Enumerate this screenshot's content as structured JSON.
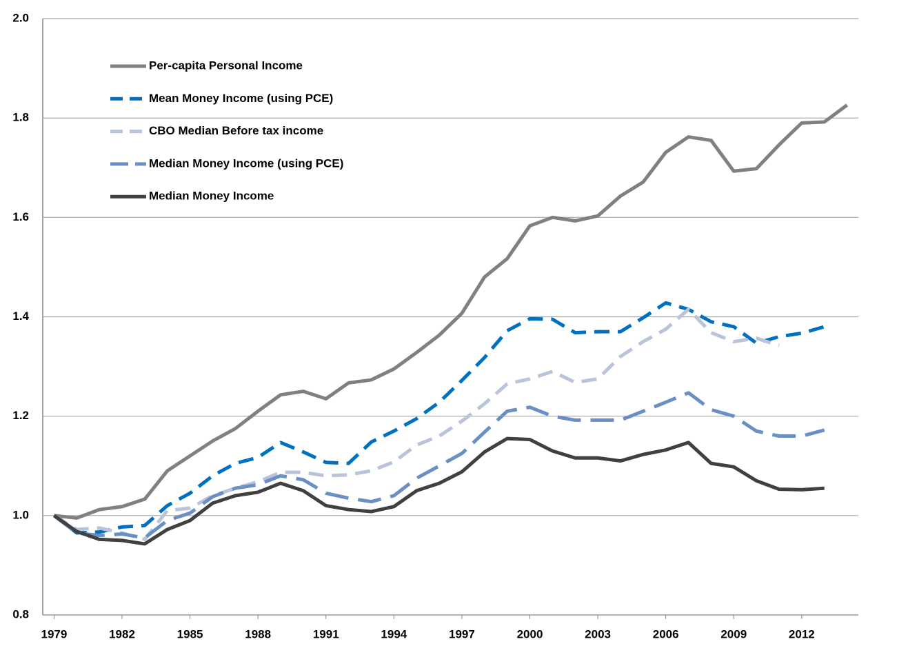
{
  "chart_data": {
    "type": "line",
    "x": [
      1979,
      1980,
      1981,
      1982,
      1983,
      1984,
      1985,
      1986,
      1987,
      1988,
      1989,
      1990,
      1991,
      1992,
      1993,
      1994,
      1995,
      1996,
      1997,
      1998,
      1999,
      2000,
      2001,
      2002,
      2003,
      2004,
      2005,
      2006,
      2007,
      2008,
      2009,
      2010,
      2011,
      2012,
      2013,
      2014
    ],
    "xlim": [
      1978.5,
      2014.5
    ],
    "xticks": [
      1979,
      1982,
      1985,
      1988,
      1991,
      1994,
      1997,
      2000,
      2003,
      2006,
      2009,
      2012
    ],
    "ylim": [
      0.8,
      2.0
    ],
    "yticks": [
      {
        "value": 0.8,
        "label": "0.8"
      },
      {
        "value": 1.0,
        "label": "1.0"
      },
      {
        "value": 1.2,
        "label": "1.2"
      },
      {
        "value": 1.4,
        "label": "1.4"
      },
      {
        "value": 1.6,
        "label": "1.6"
      },
      {
        "value": 1.8,
        "label": "1.8"
      },
      {
        "value": 2.0,
        "label": "2.0"
      }
    ],
    "grid": true,
    "legend": "upper left",
    "series": [
      {
        "name": "Per-capita Personal Income",
        "color": "#808080",
        "line_style": "solid",
        "values": [
          1.0,
          0.995,
          1.012,
          1.018,
          1.033,
          1.09,
          1.12,
          1.15,
          1.175,
          1.21,
          1.243,
          1.25,
          1.235,
          1.267,
          1.273,
          1.295,
          1.328,
          1.363,
          1.407,
          1.48,
          1.517,
          1.583,
          1.6,
          1.593,
          1.603,
          1.643,
          1.671,
          1.731,
          1.762,
          1.755,
          1.693,
          1.698,
          1.746,
          1.79,
          1.792,
          1.826
        ]
      },
      {
        "name": "Mean Money Income (using PCE)",
        "color": "#0070c0",
        "line_style": "dashed",
        "values": [
          1.0,
          0.965,
          0.967,
          0.977,
          0.98,
          1.02,
          1.045,
          1.08,
          1.105,
          1.117,
          1.147,
          1.128,
          1.107,
          1.105,
          1.148,
          1.17,
          1.195,
          1.228,
          1.272,
          1.318,
          1.372,
          1.396,
          1.395,
          1.368,
          1.37,
          1.37,
          1.398,
          1.428,
          1.415,
          1.39,
          1.38,
          1.347,
          1.36,
          1.367,
          1.38,
          null
        ]
      },
      {
        "name": "CBO Median Before tax income",
        "color": "#b9c4da",
        "line_style": "dashed",
        "values": [
          1.0,
          0.972,
          0.975,
          0.965,
          0.952,
          1.01,
          1.015,
          1.04,
          1.055,
          1.068,
          1.087,
          1.087,
          1.08,
          1.082,
          1.09,
          1.108,
          1.142,
          1.16,
          1.19,
          1.225,
          1.265,
          1.275,
          1.29,
          1.268,
          1.275,
          1.32,
          1.35,
          1.375,
          1.415,
          1.368,
          1.35,
          1.357,
          1.342,
          null,
          null,
          null
        ]
      },
      {
        "name": "Median Money Income (using PCE)",
        "color": "#6a8fc4",
        "line_style": "long-dashed",
        "values": [
          1.0,
          0.965,
          0.96,
          0.963,
          0.955,
          0.99,
          1.005,
          1.038,
          1.055,
          1.062,
          1.08,
          1.072,
          1.045,
          1.035,
          1.028,
          1.04,
          1.075,
          1.1,
          1.125,
          1.168,
          1.21,
          1.218,
          1.2,
          1.192,
          1.192,
          1.192,
          1.21,
          1.228,
          1.247,
          1.213,
          1.2,
          1.17,
          1.16,
          1.16,
          1.172,
          null
        ]
      },
      {
        "name": "Median Money Income",
        "color": "#404040",
        "line_style": "solid",
        "values": [
          1.0,
          0.968,
          0.952,
          0.95,
          0.943,
          0.972,
          0.99,
          1.025,
          1.04,
          1.047,
          1.065,
          1.05,
          1.02,
          1.012,
          1.008,
          1.018,
          1.05,
          1.065,
          1.088,
          1.128,
          1.155,
          1.153,
          1.13,
          1.116,
          1.116,
          1.11,
          1.123,
          1.132,
          1.147,
          1.105,
          1.098,
          1.07,
          1.053,
          1.052,
          1.055,
          null
        ]
      }
    ]
  }
}
